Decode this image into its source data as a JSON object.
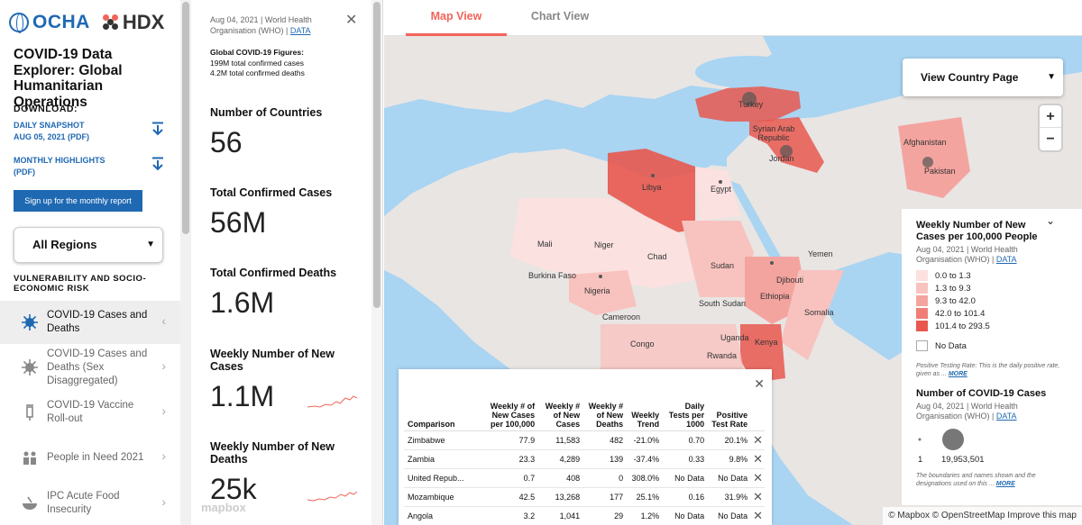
{
  "header": {
    "ocha": "OCHA",
    "hdx": "HDX",
    "title": "COVID-19 Data Explorer: Global Humanitarian Operations"
  },
  "download": {
    "heading": "DOWNLOAD:",
    "daily": [
      "DAILY SNAPSHOT",
      "AUG 05, 2021 (PDF)"
    ],
    "monthly": [
      "MONTHLY HIGHLIGHTS",
      "(PDF)"
    ],
    "signup": "Sign up for the monthly report"
  },
  "region": {
    "selected": "All Regions"
  },
  "nav": {
    "heading": "VULNERABILITY AND SOCIO-ECONOMIC RISK",
    "items": [
      {
        "label": "COVID-19 Cases and Deaths"
      },
      {
        "label": "COVID-19 Cases and Deaths (Sex Disaggregated)"
      },
      {
        "label": "COVID-19 Vaccine Roll-out"
      },
      {
        "label": "People in Need 2021"
      },
      {
        "label": "IPC Acute Food Insecurity"
      }
    ]
  },
  "stats": {
    "source_text": "Aug 04, 2021 | World Health Organisation (WHO) |",
    "source_link": "DATA",
    "global_head": "Global COVID-19 Figures:",
    "global_lines": [
      "199M total confirmed cases",
      "4.2M total confirmed deaths"
    ],
    "kpis": [
      {
        "label": "Number of Countries",
        "value": "56"
      },
      {
        "label": "Total Confirmed Cases",
        "value": "56M"
      },
      {
        "label": "Total Confirmed Deaths",
        "value": "1.6M"
      },
      {
        "label": "Weekly Number of New Cases",
        "value": "1.1M"
      },
      {
        "label": "Weekly Number of New Deaths",
        "value": "25k"
      }
    ],
    "watermark": "mapbox"
  },
  "tabs": [
    {
      "label": "Map View"
    },
    {
      "label": "Chart View"
    }
  ],
  "map": {
    "view_country": "View Country Page",
    "zoom_in": "+",
    "zoom_out": "−",
    "labels": [
      "Turkey",
      "Syrian Arab Republic",
      "Afghanistan",
      "Pakistan",
      "Libya",
      "Egypt",
      "Jordan",
      "Mali",
      "Niger",
      "Chad",
      "Sudan",
      "Yemen",
      "Burkina Faso",
      "Nigeria",
      "Djibouti",
      "Ethiopia",
      "South Sudan",
      "Cameroon",
      "Somalia",
      "Uganda",
      "Kenya",
      "Congo",
      "Rwanda"
    ],
    "attribution": "© Mapbox © OpenStreetMap Improve this map"
  },
  "legend": {
    "title": "Weekly Number of New Cases per 100,000 People",
    "source_text": "Aug 04, 2021 | World Health Organisation (WHO) |",
    "source_link": "DATA",
    "bins": [
      {
        "label": "0.0 to 1.3",
        "color": "#fbe1e0"
      },
      {
        "label": "1.3 to 9.3",
        "color": "#f8c3bf"
      },
      {
        "label": "9.3 to 42.0",
        "color": "#f4a49f"
      },
      {
        "label": "42.0 to 101.4",
        "color": "#f07e77"
      },
      {
        "label": "101.4 to 293.5",
        "color": "#e8584f"
      }
    ],
    "no_data": "No Data",
    "note1": "Positive Testing Rate: This is the daily positive rate, given as ...",
    "note1_more": "MORE",
    "count_title": "Number of COVID-19 Cases",
    "count_source_text": "Aug 04, 2021 | World Health Organisation (WHO) |",
    "count_source_link": "DATA",
    "count_min": "1",
    "count_max": "19,953,501",
    "note2": "The boundaries and names shown and the designations used on this ...",
    "note2_more": "MORE"
  },
  "table": {
    "headers": [
      "Comparison",
      "Weekly # of New Cases per 100,000",
      "Weekly # of New Cases",
      "Weekly # of New Deaths",
      "Weekly Trend",
      "Daily Tests per 1000",
      "Positive Test Rate"
    ],
    "rows": [
      [
        "Zimbabwe",
        "77.9",
        "11,583",
        "482",
        "-21.0%",
        "0.70",
        "20.1%"
      ],
      [
        "Zambia",
        "23.3",
        "4,289",
        "139",
        "-37.4%",
        "0.33",
        "9.8%"
      ],
      [
        "United Repub...",
        "0.7",
        "408",
        "0",
        "308.0%",
        "No Data",
        "No Data"
      ],
      [
        "Mozambique",
        "42.5",
        "13,268",
        "177",
        "25.1%",
        "0.16",
        "31.9%"
      ],
      [
        "Angola",
        "3.2",
        "1,041",
        "29",
        "1.2%",
        "No Data",
        "No Data"
      ]
    ]
  }
}
